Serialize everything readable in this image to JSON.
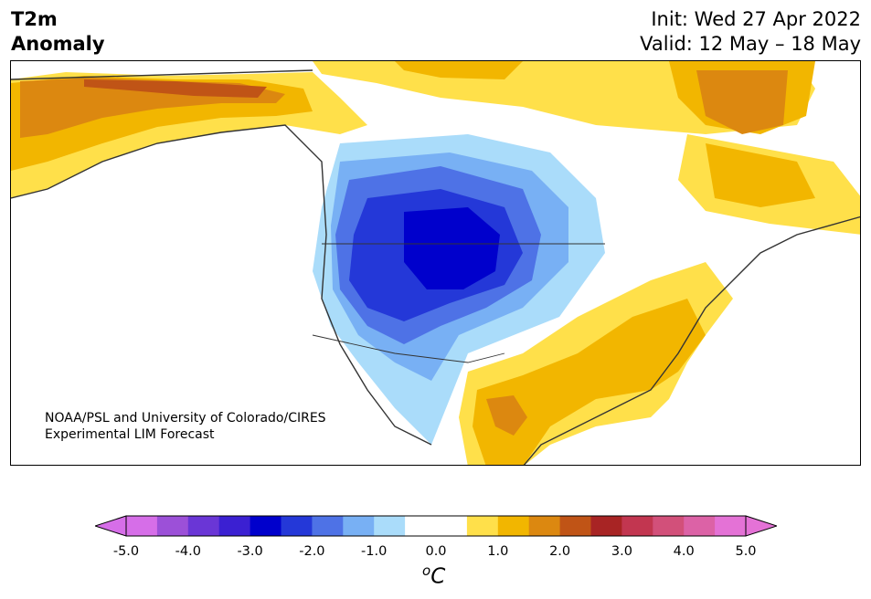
{
  "title": {
    "line1": "T2m",
    "line2": "Anomaly"
  },
  "dates": {
    "init": "Init: Wed 27 Apr 2022",
    "valid": "Valid: 12 May – 18 May"
  },
  "credit": {
    "line1": "NOAA/PSL and University of Colorado/CIRES",
    "line2": "Experimental LIM Forecast"
  },
  "colorbar": {
    "ticks": [
      "-5.0",
      "-4.0",
      "-3.0",
      "-2.0",
      "-1.0",
      "0.0",
      "1.0",
      "2.0",
      "3.0",
      "4.0",
      "5.0"
    ],
    "unit_base": "o",
    "unit_letter": "C",
    "colors": [
      "#d66ee8",
      "#9c50d8",
      "#6a36d6",
      "#3b20d2",
      "#0000cc",
      "#2438d8",
      "#4e72e6",
      "#78b0f4",
      "#aadcfa",
      "#ffffff",
      "#ffffff",
      "#ffe04a",
      "#f2b600",
      "#dc8810",
      "#c05416",
      "#a82424",
      "#c23650",
      "#d2507a",
      "#dc62a6",
      "#e472d6"
    ],
    "under": "#d66ee8",
    "over": "#e472d6"
  }
}
